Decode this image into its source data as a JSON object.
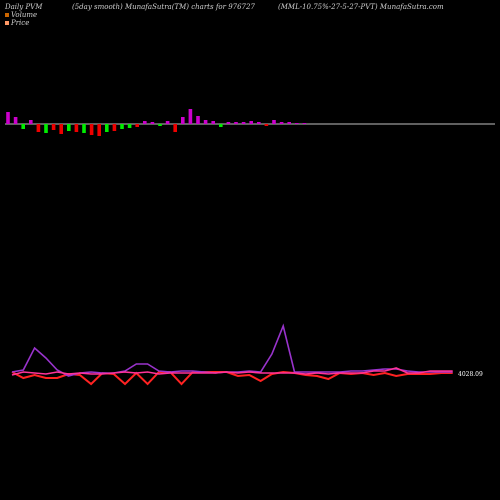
{
  "header": {
    "left": "Daily PVM",
    "center_left": "(5day smooth) MunafaSutra(TM) charts for 976727",
    "center_right": "(MML-10.75%-27-5-27-PVT) MunafaSutra.com"
  },
  "legend": [
    {
      "label": "Volume",
      "color": "#cc6600"
    },
    {
      "label": "Price",
      "color": "#ff9966"
    }
  ],
  "colors": {
    "up_bar": "#cc00cc",
    "down_bar_green": "#00ee00",
    "down_bar_red": "#ee0000",
    "baseline": "#ffffff",
    "price_line_red": "#ff2222",
    "price_line_purple": "#9933cc",
    "price_line_pink": "#ff3399"
  },
  "chart_data": {
    "type": "bar+line",
    "volume_bars": {
      "values": [
        12,
        7,
        -5,
        4,
        -8,
        -9,
        -6,
        -10,
        -7,
        -8,
        -9,
        -11,
        -12,
        -8,
        -7,
        -5,
        -4,
        -3,
        3,
        2,
        -2,
        3,
        -8,
        7,
        15,
        8,
        4,
        3,
        -3,
        2,
        2,
        2,
        3,
        2,
        -2,
        4,
        2,
        2,
        1,
        1
      ],
      "colors": [
        "up",
        "up",
        "down_green",
        "up",
        "down_red",
        "down_green",
        "down_red",
        "down_red",
        "down_green",
        "down_red",
        "down_green",
        "down_red",
        "down_red",
        "down_green",
        "down_red",
        "down_green",
        "down_green",
        "down_red",
        "up",
        "up",
        "down_green",
        "up",
        "down_red",
        "up",
        "up",
        "up",
        "up",
        "up",
        "down_green",
        "up",
        "up",
        "up",
        "up",
        "up",
        "down_red",
        "up",
        "up",
        "up",
        "up",
        "up"
      ]
    },
    "price_lines": {
      "price_label": "4028.09",
      "series": [
        {
          "key": "red",
          "values": [
            372,
            378,
            375,
            378,
            378,
            374,
            375,
            384,
            373,
            374,
            384,
            373,
            384,
            372,
            372,
            384,
            372,
            372,
            372,
            372,
            376,
            375,
            381,
            374,
            372,
            373,
            375,
            376,
            379,
            373,
            374,
            373,
            375,
            373,
            376,
            374,
            374,
            374,
            373,
            373
          ]
        },
        {
          "key": "purple",
          "values": [
            372,
            370,
            348,
            358,
            370,
            376,
            373,
            372,
            373,
            373,
            371,
            364,
            364,
            371,
            372,
            371,
            371,
            372,
            373,
            372,
            372,
            371,
            372,
            354,
            326,
            372,
            372,
            372,
            372,
            372,
            371,
            371,
            370,
            369,
            369,
            371,
            372,
            372,
            372,
            372
          ]
        },
        {
          "key": "pink",
          "values": [
            375,
            372,
            373,
            374,
            372,
            374,
            373,
            374,
            374,
            373,
            372,
            373,
            372,
            374,
            373,
            373,
            373,
            373,
            373,
            372,
            373,
            372,
            373,
            373,
            373,
            373,
            374,
            373,
            374,
            373,
            373,
            373,
            371,
            371,
            368,
            373,
            373,
            371,
            371,
            371
          ]
        }
      ]
    }
  }
}
